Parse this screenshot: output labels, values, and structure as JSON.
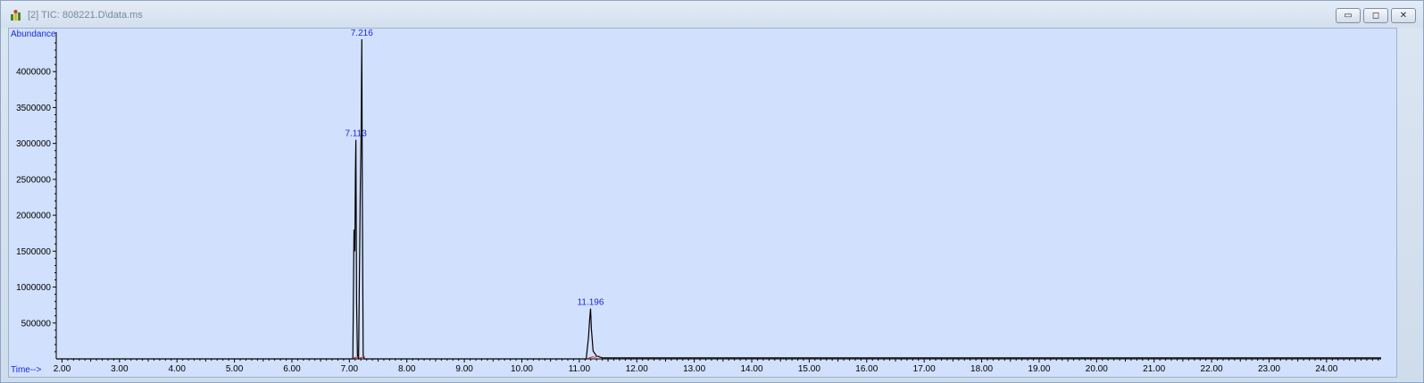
{
  "window": {
    "title": "[2] TIC: 808221.D\\data.ms",
    "icon": "chromatogram-app-icon",
    "controls": [
      "minimize-icon",
      "restore-icon",
      "close-icon"
    ]
  },
  "chart_data": {
    "type": "line",
    "ylabel": "Abundance",
    "xlabel": "Time-->",
    "xlim": [
      1.9,
      24.95
    ],
    "ylim": [
      0,
      4500000
    ],
    "x_ticks": [
      "2.00",
      "3.00",
      "4.00",
      "5.00",
      "6.00",
      "7.00",
      "8.00",
      "9.00",
      "10.00",
      "11.00",
      "12.00",
      "13.00",
      "14.00",
      "15.00",
      "16.00",
      "17.00",
      "18.00",
      "19.00",
      "20.00",
      "21.00",
      "22.00",
      "23.00",
      "24.00"
    ],
    "y_ticks": [
      "500000",
      "1000000",
      "1500000",
      "2000000",
      "2500000",
      "3000000",
      "3500000",
      "4000000"
    ],
    "peaks": [
      {
        "label": "7.113",
        "rt": 7.113,
        "abundance": 3050000
      },
      {
        "label": "7.216",
        "rt": 7.216,
        "abundance": 4450000
      },
      {
        "label": "11.196",
        "rt": 11.196,
        "abundance": 700000
      }
    ],
    "series": [
      {
        "x": [
          1.9,
          7.06,
          7.08,
          7.095,
          7.105,
          7.113,
          7.125,
          7.14,
          7.16,
          7.19,
          7.205,
          7.216,
          7.225,
          7.24,
          7.26,
          11.12,
          11.16,
          11.18,
          11.196,
          11.21,
          11.24,
          11.3,
          11.4,
          24.95
        ],
        "y": [
          0,
          0,
          1800000,
          1500000,
          2600000,
          3050000,
          800000,
          50000,
          0,
          2400000,
          3200000,
          4450000,
          2300000,
          50000,
          0,
          0,
          300000,
          550000,
          700000,
          420000,
          110000,
          40000,
          15000,
          15000
        ]
      }
    ],
    "baseline_marks": [
      {
        "x": 7.11,
        "y": 20000
      },
      {
        "x": 7.22,
        "y": 20000
      },
      {
        "x": 11.2,
        "y": 20000
      },
      {
        "x": 11.3,
        "y": 30000
      }
    ],
    "colors": {
      "trace": "#000000",
      "peak_label": "#1a2bd1",
      "axis_label": "#1a2bd1",
      "baseline_mark": "#cc2020",
      "plot_bg": "#d1e0fd"
    }
  }
}
